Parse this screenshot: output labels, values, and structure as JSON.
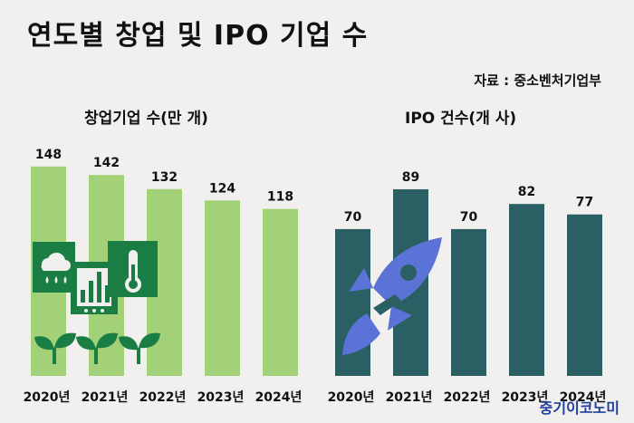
{
  "title": "연도별 창업 및 IPO 기업 수",
  "source": "자료 : 중소벤처기업부",
  "brand": "중기이코노미",
  "colors": {
    "startup": "#a3d177",
    "ipo": "#2a6064",
    "icon_green": "#1a7d43",
    "rocket": "#5b73d6"
  },
  "icons": [
    "weather-icon",
    "bar-chart-icon",
    "thermometer-icon",
    "sprout-icon",
    "rocket-icon"
  ],
  "chart_data": [
    {
      "type": "bar",
      "title": "창업기업 수(만 개)",
      "categories": [
        "2020년",
        "2021년",
        "2022년",
        "2023년",
        "2024년"
      ],
      "values": [
        148,
        142,
        132,
        124,
        118
      ],
      "color": "#a3d177"
    },
    {
      "type": "bar",
      "title": "IPO 건수(개 사)",
      "categories": [
        "2020년",
        "2021년",
        "2022년",
        "2023년",
        "2024년"
      ],
      "values": [
        70,
        89,
        70,
        82,
        77
      ],
      "color": "#2a6064"
    }
  ]
}
